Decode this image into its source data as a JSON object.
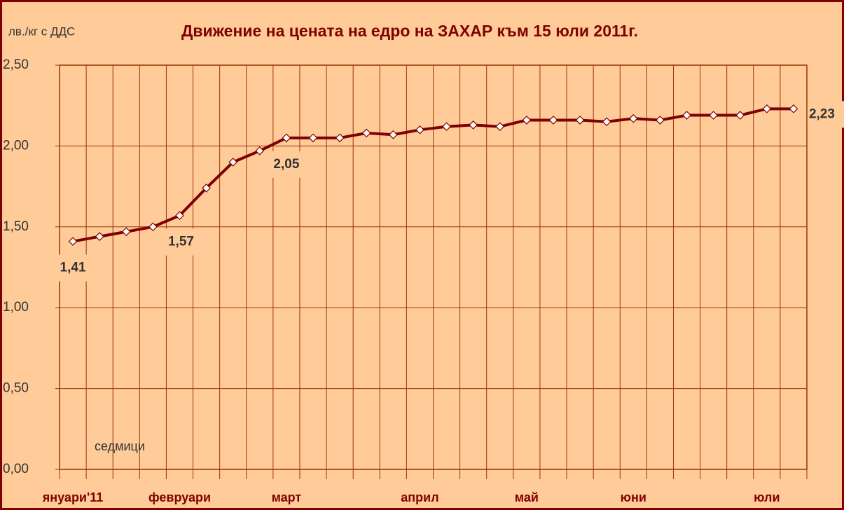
{
  "chart_data": {
    "type": "line",
    "title": "Движение на цената на едро на ЗАХАР към 15 юли 2011г.",
    "y_label": "лв./кг с ДДС",
    "annotation": "седмици",
    "categories": [
      "януари'11",
      null,
      null,
      null,
      "февруари",
      null,
      null,
      null,
      "март",
      null,
      null,
      null,
      null,
      "април",
      null,
      null,
      null,
      "май",
      null,
      null,
      null,
      "юни",
      null,
      null,
      null,
      null,
      "юли",
      null
    ],
    "values": [
      1.41,
      1.44,
      1.47,
      1.5,
      1.57,
      1.74,
      1.9,
      1.97,
      2.05,
      2.05,
      2.05,
      2.08,
      2.07,
      2.1,
      2.12,
      2.13,
      2.12,
      2.16,
      2.16,
      2.16,
      2.15,
      2.17,
      2.16,
      2.19,
      2.19,
      2.19,
      2.23,
      2.23
    ],
    "value_labels": [
      "1,41",
      null,
      null,
      null,
      "1,57",
      null,
      null,
      null,
      "2,05",
      null,
      null,
      null,
      null,
      null,
      null,
      null,
      null,
      null,
      null,
      null,
      null,
      null,
      null,
      null,
      null,
      null,
      null,
      "2,23"
    ],
    "color": "#800000",
    "ylim": [
      0,
      2.5
    ],
    "yticks": [
      {
        "value": 0,
        "label": "0,00"
      },
      {
        "value": 0.5,
        "label": "0,50"
      },
      {
        "value": 1,
        "label": "1,00"
      },
      {
        "value": 1.5,
        "label": "1,50"
      },
      {
        "value": 2,
        "label": "2,00"
      },
      {
        "value": 2.5,
        "label": "2,50"
      }
    ],
    "grid": true
  }
}
